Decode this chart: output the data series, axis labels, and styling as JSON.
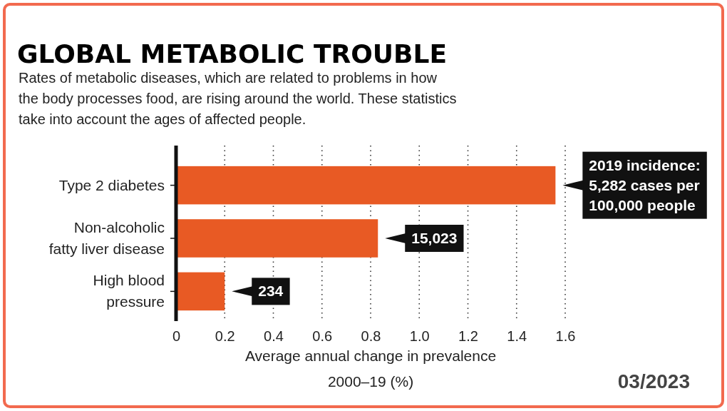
{
  "chart_data": {
    "type": "bar",
    "orientation": "horizontal",
    "title": "GLOBAL METABOLIC TROUBLE",
    "subtitle": "Rates of metabolic diseases, which are related to problems in how the body processes food, are rising around the world. These statistics take into account the ages of affected people.",
    "categories": [
      "Type 2 diabetes",
      "Non-alcoholic fatty liver disease",
      "High blood pressure"
    ],
    "values": [
      1.56,
      0.83,
      0.2
    ],
    "color": "#e85a24",
    "xlim": [
      0,
      1.6
    ],
    "xticks": [
      0,
      {
        "value": 0.2,
        "label": "0.2"
      },
      {
        "value": 0.4,
        "label": "0.4"
      },
      {
        "value": 0.6,
        "label": "0.6"
      },
      {
        "value": 0.8,
        "label": "0.8"
      },
      {
        "value": 1.0,
        "label": "1.0"
      },
      {
        "value": 1.2,
        "label": "1.2"
      },
      {
        "value": 1.4,
        "label": "1.4"
      },
      {
        "value": 1.6,
        "label": "1.6"
      }
    ],
    "xlabel": "Average annual change in prevalence 2000–19 (%)",
    "grid": "x",
    "annotations": [
      {
        "text": "2019 incidence: 5,282 cases per 100,000 people",
        "x": 1.56,
        "y": "Type 2 diabetes"
      },
      {
        "text": "15,023",
        "x": 0.83,
        "y": "Non-alcoholic fatty liver disease"
      },
      {
        "text": "234",
        "x": 0.2,
        "y": "High blood pressure"
      },
      "03/2023"
    ]
  }
}
